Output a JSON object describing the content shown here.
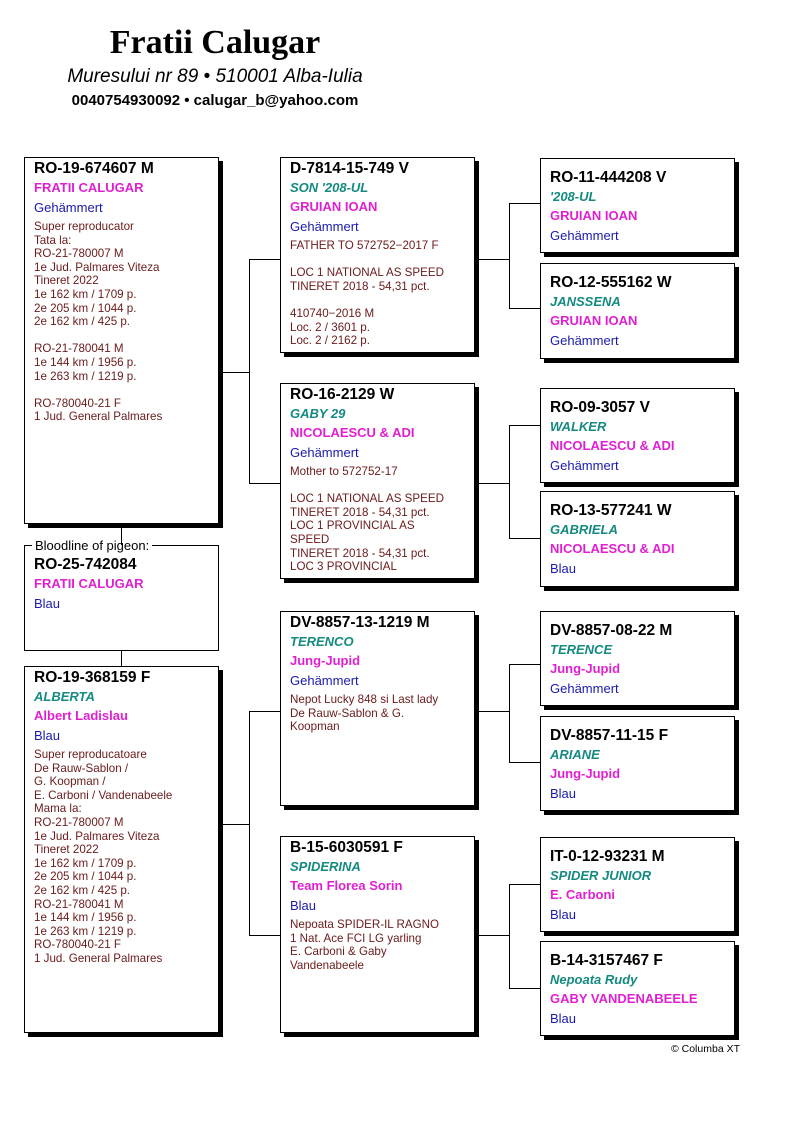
{
  "header": {
    "title": "Fratii Calugar",
    "address": "Muresului nr 89 • 510001 Alba-Iulia",
    "contact": "0040754930092 • calugar_b@yahoo.com"
  },
  "colors": {
    "name": "#148a80",
    "owner": "#e020d0",
    "color": "#1a1ab0",
    "notes": "#6b1a1a"
  },
  "subject": {
    "label": "Bloodline of pigeon:",
    "ring": "RO-25-742084",
    "owner": "FRATII CALUGAR",
    "color": "Blau"
  },
  "pigeons": [
    {
      "ring": "RO-19-674607 M",
      "name": "",
      "owner": "FRATII CALUGAR",
      "color": "Gehämmert",
      "notes": "Super reproducator\nTata la:\nRO-21-780007 M\n1e Jud. Palmares Viteza\nTineret 2022\n1e 162 km / 1709 p.\n2e 205 km / 1044 p.\n2e 162 km / 425 p.\n\nRO-21-780041 M\n1e 144 km / 1956 p.\n1e 263 km / 1219 p.\n\nRO-780040-21 F\n1 Jud. General Palmares"
    },
    {
      "ring": "RO-19-368159 F",
      "name": "ALBERTA",
      "owner": "Albert Ladislau",
      "color": "Blau",
      "notes": "Super reproducatoare\nDe Rauw-Sablon /\nG. Koopman /\nE. Carboni / Vandenabeele\nMama la:\nRO-21-780007 M\n1e Jud. Palmares Viteza\nTineret 2022\n1e 162 km / 1709 p.\n2e 205 km / 1044 p.\n2e 162 km / 425 p.\nRO-21-780041 M\n1e 144 km / 1956 p.\n1e 263 km / 1219 p.\nRO-780040-21 F\n1 Jud. General Palmares"
    },
    {
      "ring": "D-7814-15-749 V",
      "name": "SON '208-UL",
      "owner": "GRUIAN IOAN",
      "color": "Gehämmert",
      "notes": "FATHER TO 572752−2017 F\n\nLOC 1 NATIONAL AS SPEED\nTINERET 2018 - 54,31 pct.\n\n410740−2016 M\nLoc. 2 / 3601 p.\nLoc. 2 / 2162 p."
    },
    {
      "ring": "RO-16-2129 W",
      "name": "GABY 29",
      "owner": "NICOLAESCU & ADI",
      "color": "Gehämmert",
      "notes": "Mother to 572752-17\n\nLOC 1 NATIONAL AS SPEED\nTINERET 2018 - 54,31 pct.\nLOC 1 PROVINCIAL AS\nSPEED\nTINERET 2018 - 54,31 pct.\nLOC 3 PROVINCIAL"
    },
    {
      "ring": "DV-8857-13-1219 M",
      "name": "TERENCO",
      "owner": "Jung-Jupid",
      "color": "Gehämmert",
      "notes": "Nepot Lucky 848 si Last lady\nDe Rauw-Sablon & G.\nKoopman"
    },
    {
      "ring": "B-15-6030591 F",
      "name": "SPIDERINA",
      "owner": "Team Florea Sorin",
      "color": "Blau",
      "notes": "Nepoata SPIDER-IL RAGNO\n1 Nat. Ace FCI LG yarling\nE. Carboni & Gaby\nVandenabeele"
    },
    {
      "ring": "RO-11-444208 V",
      "name": "'208-UL",
      "owner": "GRUIAN IOAN",
      "color": "Gehämmert",
      "notes": ""
    },
    {
      "ring": "RO-12-555162 W",
      "name": "JANSSENA",
      "owner": "GRUIAN IOAN",
      "color": "Gehämmert",
      "notes": ""
    },
    {
      "ring": "RO-09-3057 V",
      "name": "WALKER",
      "owner": "NICOLAESCU & ADI",
      "color": "Gehämmert",
      "notes": ""
    },
    {
      "ring": "RO-13-577241 W",
      "name": "GABRIELA",
      "owner": "NICOLAESCU & ADI",
      "color": "Blau",
      "notes": ""
    },
    {
      "ring": "DV-8857-08-22 M",
      "name": "TERENCE",
      "owner": "Jung-Jupid",
      "color": "Gehämmert",
      "notes": ""
    },
    {
      "ring": "DV-8857-11-15 F",
      "name": "ARIANE",
      "owner": "Jung-Jupid",
      "color": "Blau",
      "notes": ""
    },
    {
      "ring": "IT-0-12-93231 M",
      "name": "SPIDER JUNIOR",
      "owner": "E. Carboni",
      "color": "Blau",
      "notes": ""
    },
    {
      "ring": "B-14-3157467 F",
      "name": "Nepoata Rudy",
      "owner": "GABY VANDENABEELE",
      "color": "Blau",
      "notes": ""
    }
  ],
  "footer": {
    "copyright": "© Columba XT"
  }
}
